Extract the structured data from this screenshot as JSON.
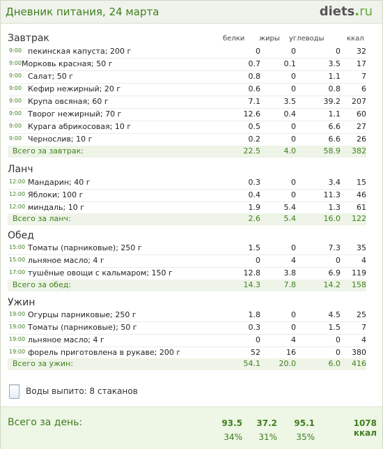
{
  "header": {
    "title": "Дневник питания, 24 марта",
    "logo_main": "diets",
    "logo_dot": ".",
    "logo_tld": "ru"
  },
  "columns": {
    "protein": "белки",
    "fat": "жиры",
    "carbs": "углеводы",
    "kcal": "ккал"
  },
  "sections": [
    {
      "title": "Завтрак",
      "items": [
        {
          "time": "9:00",
          "name": "пекинская капуста; 200 г",
          "p": "0",
          "f": "0",
          "c": "0",
          "k": "32"
        },
        {
          "time": "9:00",
          "name": "Морковь красная; 50 г",
          "p": "0.7",
          "f": "0.1",
          "c": "3.5",
          "k": "17"
        },
        {
          "time": "9:00",
          "name": "Салат; 50 г",
          "p": "0.8",
          "f": "0",
          "c": "1.1",
          "k": "7"
        },
        {
          "time": "9:00",
          "name": "Кефир нежирный; 20 г",
          "p": "0.6",
          "f": "0",
          "c": "0.8",
          "k": "6"
        },
        {
          "time": "9:00",
          "name": "Крупа овсяная; 60 г",
          "p": "7.1",
          "f": "3.5",
          "c": "39.2",
          "k": "207"
        },
        {
          "time": "9:00",
          "name": "Творог нежирный; 70 г",
          "p": "12.6",
          "f": "0.4",
          "c": "1.1",
          "k": "60"
        },
        {
          "time": "9:00",
          "name": "Курага абрикосовая; 10 г",
          "p": "0.5",
          "f": "0",
          "c": "6.6",
          "k": "27"
        },
        {
          "time": "9:00",
          "name": "Чернослив; 10 г",
          "p": "0.2",
          "f": "0",
          "c": "6.6",
          "k": "26"
        }
      ],
      "total": {
        "label": "Всего за завтрак:",
        "p": "22.5",
        "f": "4.0",
        "c": "58.9",
        "k": "382"
      }
    },
    {
      "title": "Ланч",
      "items": [
        {
          "time": "12:00",
          "name": "Мандарин; 40 г",
          "p": "0.3",
          "f": "0",
          "c": "3.4",
          "k": "15"
        },
        {
          "time": "12:00",
          "name": "Яблоки; 100 г",
          "p": "0.4",
          "f": "0",
          "c": "11.3",
          "k": "46"
        },
        {
          "time": "12:00",
          "name": "миндаль; 10 г",
          "p": "1.9",
          "f": "5.4",
          "c": "1.3",
          "k": "61"
        }
      ],
      "total": {
        "label": "Всего за ланч:",
        "p": "2.6",
        "f": "5.4",
        "c": "16.0",
        "k": "122"
      }
    },
    {
      "title": "Обед",
      "items": [
        {
          "time": "15:00",
          "name": "Томаты (парниковые); 250 г",
          "p": "1.5",
          "f": "0",
          "c": "7.3",
          "k": "35"
        },
        {
          "time": "15:00",
          "name": "льняное масло; 4 г",
          "p": "0",
          "f": "4",
          "c": "0",
          "k": "4"
        },
        {
          "time": "17:00",
          "name": "тушёные овощи с кальмаром; 150 г",
          "p": "12.8",
          "f": "3.8",
          "c": "6.9",
          "k": "119"
        }
      ],
      "total": {
        "label": "Всего за обед:",
        "p": "14.3",
        "f": "7.8",
        "c": "14.2",
        "k": "158"
      }
    },
    {
      "title": "Ужин",
      "items": [
        {
          "time": "19:00",
          "name": "Огурцы парниковые; 250 г",
          "p": "1.8",
          "f": "0",
          "c": "4.5",
          "k": "25"
        },
        {
          "time": "19:00",
          "name": "Томаты (парниковые); 50 г",
          "p": "0.3",
          "f": "0",
          "c": "1.5",
          "k": "7"
        },
        {
          "time": "19:00",
          "name": "льняное масло; 4 г",
          "p": "0",
          "f": "4",
          "c": "0",
          "k": "4"
        },
        {
          "time": "19:00",
          "name": "форель приготовлена в рукаве; 200 г",
          "p": "52",
          "f": "16",
          "c": "0",
          "k": "380"
        }
      ],
      "total": {
        "label": "Всего за ужин:",
        "p": "54.1",
        "f": "20.0",
        "c": "6.0",
        "k": "416"
      }
    }
  ],
  "water": {
    "text": "Воды выпито: 8 стаканов",
    "icon": "water-glass-icon"
  },
  "day_total": {
    "label": "Всего за день:",
    "p": "93.5",
    "f": "37.2",
    "c": "95.1",
    "k": "1078 ккал",
    "p_pct": "34%",
    "f_pct": "31%",
    "c_pct": "35%"
  },
  "colors": {
    "accent_green": "#3f7f1f",
    "total_bg": "#eef4e7"
  }
}
